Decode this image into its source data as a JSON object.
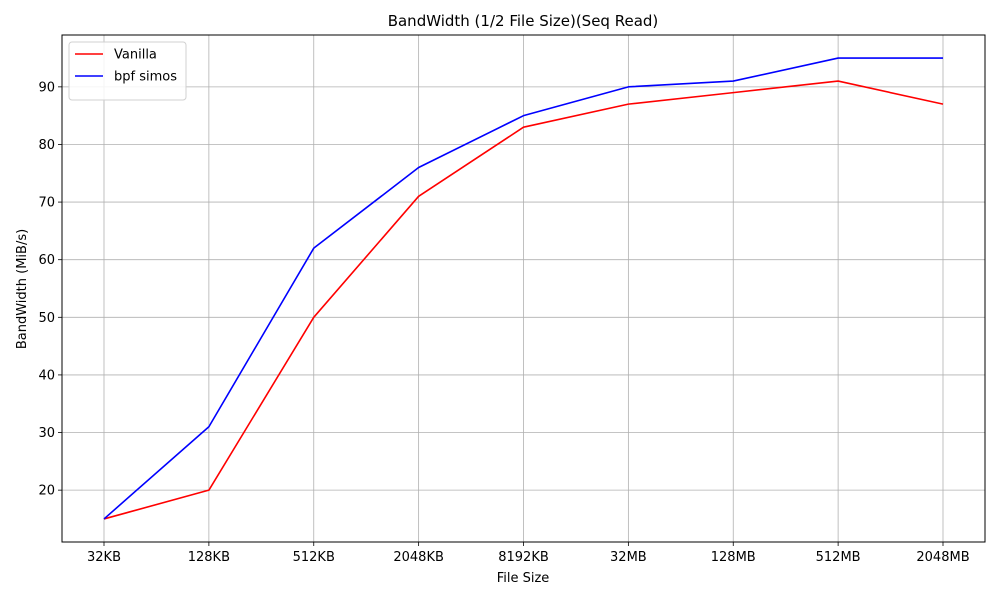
{
  "chart_data": {
    "type": "line",
    "title": "BandWidth (1/2 File Size)(Seq Read)",
    "xlabel": "File Size",
    "ylabel": "BandWidth (MiB/s)",
    "categories": [
      "32KB",
      "128KB",
      "512KB",
      "2048KB",
      "8192KB",
      "32MB",
      "128MB",
      "512MB",
      "2048MB"
    ],
    "y_ticks": [
      20,
      30,
      40,
      50,
      60,
      70,
      80,
      90
    ],
    "ylim": [
      11,
      99
    ],
    "grid": true,
    "legend_position": "top-left",
    "series": [
      {
        "name": "Vanilla",
        "color": "#ff0000",
        "values": [
          15,
          20,
          50,
          71,
          83,
          87,
          89,
          91,
          87
        ]
      },
      {
        "name": "bpf simos",
        "color": "#0000ff",
        "values": [
          15,
          31,
          62,
          76,
          85,
          90,
          91,
          95,
          95
        ]
      }
    ]
  }
}
